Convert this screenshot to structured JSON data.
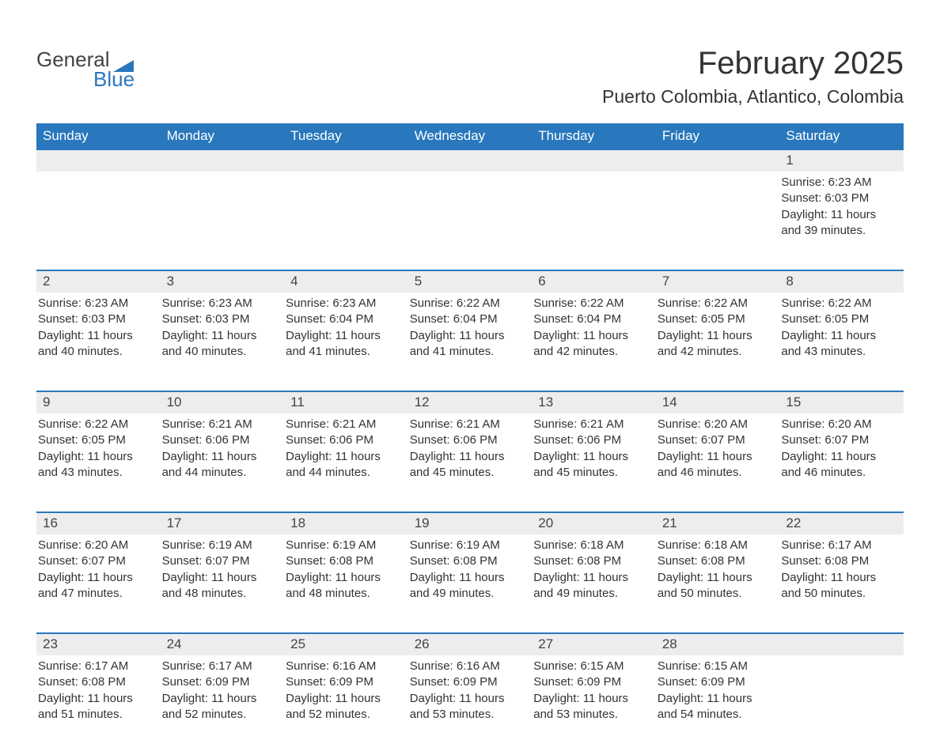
{
  "colors": {
    "header_bg": "#2977bc",
    "header_text": "#ffffff",
    "daynum_bg": "#ededed",
    "text": "#333333",
    "page_bg": "#ffffff",
    "week_border": "#2977bc",
    "logo_gray": "#444444",
    "logo_blue": "#2977bc"
  },
  "typography": {
    "title_fontsize": 40,
    "location_fontsize": 23,
    "weekday_fontsize": 17,
    "daynum_fontsize": 17,
    "body_fontsize": 15
  },
  "logo": {
    "line1": "General",
    "line2": "Blue"
  },
  "title": "February 2025",
  "location": "Puerto Colombia, Atlantico, Colombia",
  "weekdays": [
    "Sunday",
    "Monday",
    "Tuesday",
    "Wednesday",
    "Thursday",
    "Friday",
    "Saturday"
  ],
  "weeks": [
    [
      null,
      null,
      null,
      null,
      null,
      null,
      {
        "n": "1",
        "sunrise": "Sunrise: 6:23 AM",
        "sunset": "Sunset: 6:03 PM",
        "day1": "Daylight: 11 hours",
        "day2": "and 39 minutes."
      }
    ],
    [
      {
        "n": "2",
        "sunrise": "Sunrise: 6:23 AM",
        "sunset": "Sunset: 6:03 PM",
        "day1": "Daylight: 11 hours",
        "day2": "and 40 minutes."
      },
      {
        "n": "3",
        "sunrise": "Sunrise: 6:23 AM",
        "sunset": "Sunset: 6:03 PM",
        "day1": "Daylight: 11 hours",
        "day2": "and 40 minutes."
      },
      {
        "n": "4",
        "sunrise": "Sunrise: 6:23 AM",
        "sunset": "Sunset: 6:04 PM",
        "day1": "Daylight: 11 hours",
        "day2": "and 41 minutes."
      },
      {
        "n": "5",
        "sunrise": "Sunrise: 6:22 AM",
        "sunset": "Sunset: 6:04 PM",
        "day1": "Daylight: 11 hours",
        "day2": "and 41 minutes."
      },
      {
        "n": "6",
        "sunrise": "Sunrise: 6:22 AM",
        "sunset": "Sunset: 6:04 PM",
        "day1": "Daylight: 11 hours",
        "day2": "and 42 minutes."
      },
      {
        "n": "7",
        "sunrise": "Sunrise: 6:22 AM",
        "sunset": "Sunset: 6:05 PM",
        "day1": "Daylight: 11 hours",
        "day2": "and 42 minutes."
      },
      {
        "n": "8",
        "sunrise": "Sunrise: 6:22 AM",
        "sunset": "Sunset: 6:05 PM",
        "day1": "Daylight: 11 hours",
        "day2": "and 43 minutes."
      }
    ],
    [
      {
        "n": "9",
        "sunrise": "Sunrise: 6:22 AM",
        "sunset": "Sunset: 6:05 PM",
        "day1": "Daylight: 11 hours",
        "day2": "and 43 minutes."
      },
      {
        "n": "10",
        "sunrise": "Sunrise: 6:21 AM",
        "sunset": "Sunset: 6:06 PM",
        "day1": "Daylight: 11 hours",
        "day2": "and 44 minutes."
      },
      {
        "n": "11",
        "sunrise": "Sunrise: 6:21 AM",
        "sunset": "Sunset: 6:06 PM",
        "day1": "Daylight: 11 hours",
        "day2": "and 44 minutes."
      },
      {
        "n": "12",
        "sunrise": "Sunrise: 6:21 AM",
        "sunset": "Sunset: 6:06 PM",
        "day1": "Daylight: 11 hours",
        "day2": "and 45 minutes."
      },
      {
        "n": "13",
        "sunrise": "Sunrise: 6:21 AM",
        "sunset": "Sunset: 6:06 PM",
        "day1": "Daylight: 11 hours",
        "day2": "and 45 minutes."
      },
      {
        "n": "14",
        "sunrise": "Sunrise: 6:20 AM",
        "sunset": "Sunset: 6:07 PM",
        "day1": "Daylight: 11 hours",
        "day2": "and 46 minutes."
      },
      {
        "n": "15",
        "sunrise": "Sunrise: 6:20 AM",
        "sunset": "Sunset: 6:07 PM",
        "day1": "Daylight: 11 hours",
        "day2": "and 46 minutes."
      }
    ],
    [
      {
        "n": "16",
        "sunrise": "Sunrise: 6:20 AM",
        "sunset": "Sunset: 6:07 PM",
        "day1": "Daylight: 11 hours",
        "day2": "and 47 minutes."
      },
      {
        "n": "17",
        "sunrise": "Sunrise: 6:19 AM",
        "sunset": "Sunset: 6:07 PM",
        "day1": "Daylight: 11 hours",
        "day2": "and 48 minutes."
      },
      {
        "n": "18",
        "sunrise": "Sunrise: 6:19 AM",
        "sunset": "Sunset: 6:08 PM",
        "day1": "Daylight: 11 hours",
        "day2": "and 48 minutes."
      },
      {
        "n": "19",
        "sunrise": "Sunrise: 6:19 AM",
        "sunset": "Sunset: 6:08 PM",
        "day1": "Daylight: 11 hours",
        "day2": "and 49 minutes."
      },
      {
        "n": "20",
        "sunrise": "Sunrise: 6:18 AM",
        "sunset": "Sunset: 6:08 PM",
        "day1": "Daylight: 11 hours",
        "day2": "and 49 minutes."
      },
      {
        "n": "21",
        "sunrise": "Sunrise: 6:18 AM",
        "sunset": "Sunset: 6:08 PM",
        "day1": "Daylight: 11 hours",
        "day2": "and 50 minutes."
      },
      {
        "n": "22",
        "sunrise": "Sunrise: 6:17 AM",
        "sunset": "Sunset: 6:08 PM",
        "day1": "Daylight: 11 hours",
        "day2": "and 50 minutes."
      }
    ],
    [
      {
        "n": "23",
        "sunrise": "Sunrise: 6:17 AM",
        "sunset": "Sunset: 6:08 PM",
        "day1": "Daylight: 11 hours",
        "day2": "and 51 minutes."
      },
      {
        "n": "24",
        "sunrise": "Sunrise: 6:17 AM",
        "sunset": "Sunset: 6:09 PM",
        "day1": "Daylight: 11 hours",
        "day2": "and 52 minutes."
      },
      {
        "n": "25",
        "sunrise": "Sunrise: 6:16 AM",
        "sunset": "Sunset: 6:09 PM",
        "day1": "Daylight: 11 hours",
        "day2": "and 52 minutes."
      },
      {
        "n": "26",
        "sunrise": "Sunrise: 6:16 AM",
        "sunset": "Sunset: 6:09 PM",
        "day1": "Daylight: 11 hours",
        "day2": "and 53 minutes."
      },
      {
        "n": "27",
        "sunrise": "Sunrise: 6:15 AM",
        "sunset": "Sunset: 6:09 PM",
        "day1": "Daylight: 11 hours",
        "day2": "and 53 minutes."
      },
      {
        "n": "28",
        "sunrise": "Sunrise: 6:15 AM",
        "sunset": "Sunset: 6:09 PM",
        "day1": "Daylight: 11 hours",
        "day2": "and 54 minutes."
      },
      null
    ]
  ]
}
